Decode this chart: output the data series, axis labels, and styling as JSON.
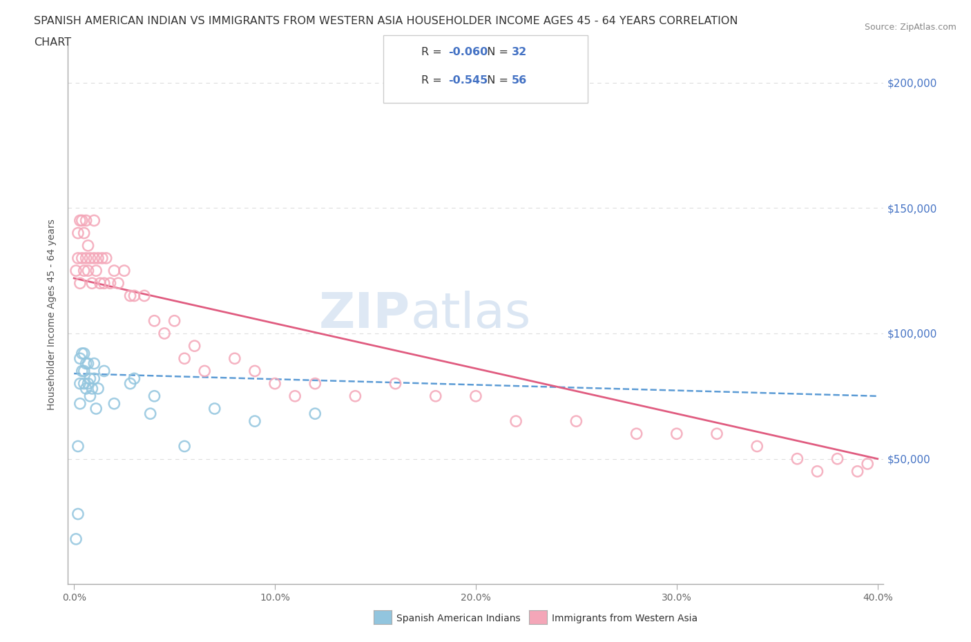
{
  "title_line1": "SPANISH AMERICAN INDIAN VS IMMIGRANTS FROM WESTERN ASIA HOUSEHOLDER INCOME AGES 45 - 64 YEARS CORRELATION",
  "title_line2": "CHART",
  "source_text": "Source: ZipAtlas.com",
  "ylabel": "Householder Income Ages 45 - 64 years",
  "xlim": [
    -0.003,
    0.403
  ],
  "ylim": [
    0,
    215000
  ],
  "xtick_vals": [
    0.0,
    0.1,
    0.2,
    0.3,
    0.4
  ],
  "xtick_labels": [
    "0.0%",
    "10.0%",
    "20.0%",
    "30.0%",
    "40.0%"
  ],
  "ytick_vals": [
    50000,
    100000,
    150000,
    200000
  ],
  "ytick_labels": [
    "$50,000",
    "$100,000",
    "$150,000",
    "$200,000"
  ],
  "watermark": "ZIPatlas",
  "blue_color": "#92c5de",
  "pink_color": "#f4a6b8",
  "blue_line_color": "#5b9bd5",
  "pink_line_color": "#e05c80",
  "R_blue": -0.06,
  "N_blue": 32,
  "R_pink": -0.545,
  "N_pink": 56,
  "blue_scatter_x": [
    0.001,
    0.002,
    0.002,
    0.003,
    0.003,
    0.003,
    0.004,
    0.004,
    0.005,
    0.005,
    0.005,
    0.006,
    0.006,
    0.007,
    0.007,
    0.008,
    0.008,
    0.009,
    0.01,
    0.01,
    0.011,
    0.012,
    0.015,
    0.02,
    0.028,
    0.03,
    0.038,
    0.04,
    0.055,
    0.07,
    0.09,
    0.12
  ],
  "blue_scatter_y": [
    18000,
    28000,
    55000,
    72000,
    80000,
    90000,
    85000,
    92000,
    80000,
    85000,
    92000,
    78000,
    88000,
    80000,
    88000,
    75000,
    82000,
    78000,
    88000,
    82000,
    70000,
    78000,
    85000,
    72000,
    80000,
    82000,
    68000,
    75000,
    55000,
    70000,
    65000,
    68000
  ],
  "pink_scatter_x": [
    0.001,
    0.002,
    0.002,
    0.003,
    0.003,
    0.004,
    0.004,
    0.005,
    0.005,
    0.006,
    0.006,
    0.007,
    0.007,
    0.008,
    0.009,
    0.01,
    0.01,
    0.011,
    0.012,
    0.013,
    0.014,
    0.015,
    0.016,
    0.018,
    0.02,
    0.022,
    0.025,
    0.028,
    0.03,
    0.035,
    0.04,
    0.045,
    0.05,
    0.055,
    0.06,
    0.065,
    0.08,
    0.09,
    0.1,
    0.11,
    0.12,
    0.14,
    0.16,
    0.18,
    0.2,
    0.22,
    0.25,
    0.28,
    0.3,
    0.32,
    0.34,
    0.36,
    0.37,
    0.38,
    0.39,
    0.395
  ],
  "pink_scatter_y": [
    125000,
    130000,
    140000,
    120000,
    145000,
    130000,
    145000,
    125000,
    140000,
    130000,
    145000,
    125000,
    135000,
    130000,
    120000,
    130000,
    145000,
    125000,
    130000,
    120000,
    130000,
    120000,
    130000,
    120000,
    125000,
    120000,
    125000,
    115000,
    115000,
    115000,
    105000,
    100000,
    105000,
    90000,
    95000,
    85000,
    90000,
    85000,
    80000,
    75000,
    80000,
    75000,
    80000,
    75000,
    75000,
    65000,
    65000,
    60000,
    60000,
    60000,
    55000,
    50000,
    45000,
    50000,
    45000,
    48000
  ],
  "blue_line_x0": 0.0,
  "blue_line_x1": 0.4,
  "blue_line_y0": 84000,
  "blue_line_y1": 75000,
  "pink_line_x0": 0.0,
  "pink_line_x1": 0.4,
  "pink_line_y0": 122000,
  "pink_line_y1": 50000,
  "grid_color": "#dddddd",
  "bg_color": "#ffffff",
  "text_color": "#333333",
  "axis_label_color": "#4472c4",
  "legend_text_color": "#333333",
  "legend_RN_color": "#4472c4"
}
